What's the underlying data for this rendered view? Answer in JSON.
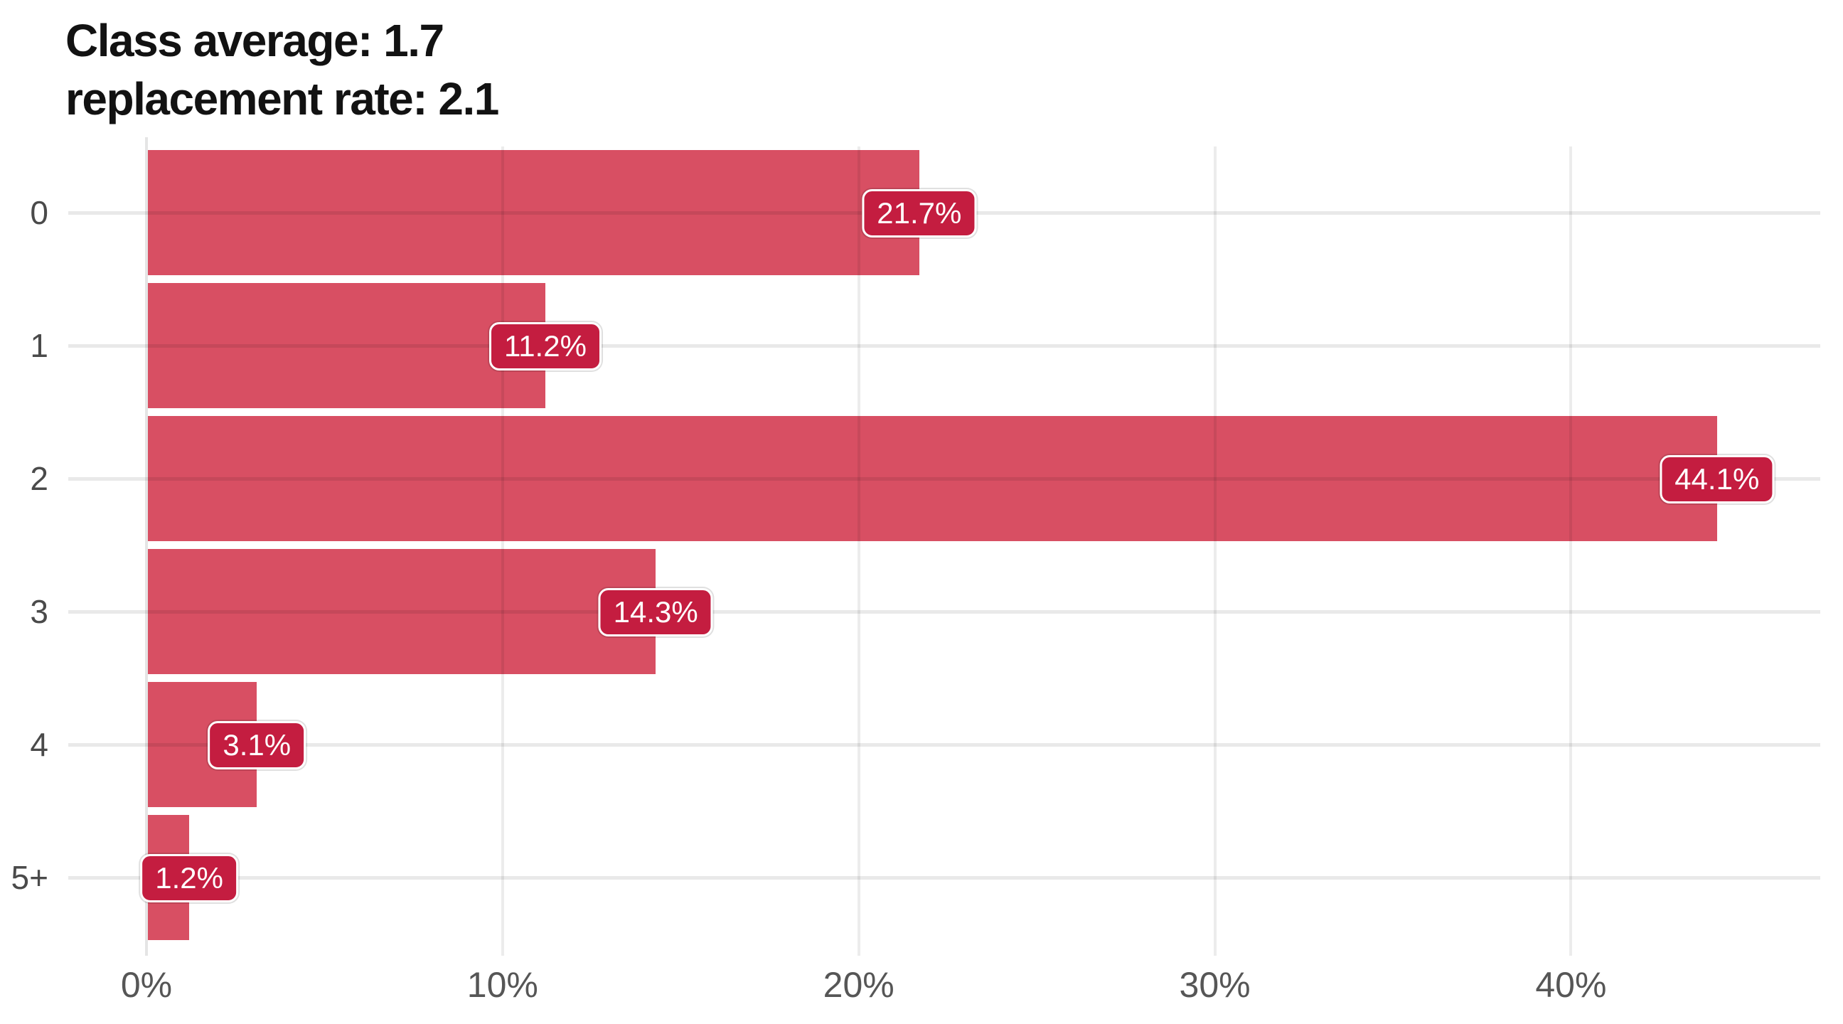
{
  "title": {
    "line1": "Class average: 1.7",
    "line2": "replacement rate: 2.1"
  },
  "colors": {
    "bar": "#d84f63",
    "badge": "#c41d40",
    "badge_text": "#ffffff",
    "gridline": "rgba(0,0,0,0.085)",
    "axis_label": "#565656",
    "title_text": "#121212"
  },
  "chart_data": {
    "type": "bar",
    "orientation": "horizontal",
    "title": "Class average: 1.7 replacement rate: 2.1",
    "categories": [
      "0",
      "1",
      "2",
      "3",
      "4",
      "5+"
    ],
    "values": [
      21.7,
      11.2,
      44.1,
      14.3,
      3.1,
      1.2
    ],
    "value_labels": [
      "21.7%",
      "11.2%",
      "44.1%",
      "14.3%",
      "3.1%",
      "1.2%"
    ],
    "xlabel": "",
    "ylabel": "",
    "x_tick_labels": [
      "0%",
      "10%",
      "20%",
      "30%",
      "40%"
    ],
    "x_tick_values": [
      0,
      10,
      20,
      30,
      40
    ],
    "xlim": [
      0,
      47
    ],
    "grid": true,
    "legend": false,
    "data_label_style": "badge-at-bar-end"
  }
}
